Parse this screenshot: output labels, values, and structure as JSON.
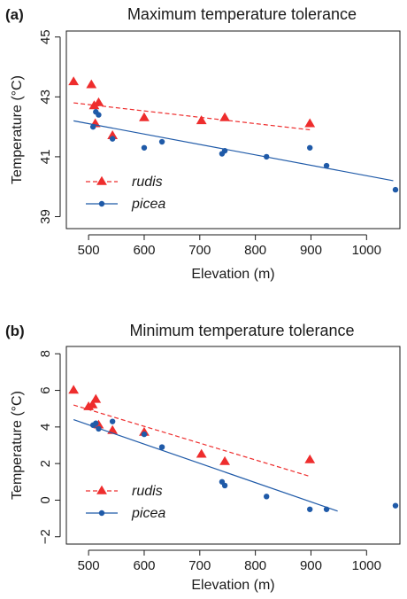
{
  "colors": {
    "rudis": "#ee2d2d",
    "picea": "#1f5aa8",
    "axis": "#1a1a1a"
  },
  "chart_data": [
    {
      "type": "scatter",
      "panel_label": "(a)",
      "title": "Maximum temperature tolerance",
      "xlabel": "Elevation (m)",
      "ylabel": "Temperature (°C)",
      "xlim": [
        460,
        1060
      ],
      "ylim": [
        38.6,
        45.2
      ],
      "xticks": [
        500,
        600,
        700,
        800,
        900,
        1000
      ],
      "yticks": [
        39,
        41,
        43,
        45
      ],
      "legend_position": "bottom-left",
      "series": [
        {
          "name": "rudis",
          "marker": "triangle",
          "line_style": "dashed",
          "points": [
            [
              473,
              43.5
            ],
            [
              505,
              43.4
            ],
            [
              510,
              42.7
            ],
            [
              512,
              42.1
            ],
            [
              518,
              42.8
            ],
            [
              543,
              41.7
            ],
            [
              600,
              42.3
            ],
            [
              703,
              42.2
            ],
            [
              745,
              42.3
            ],
            [
              898,
              42.1
            ]
          ],
          "fit": [
            [
              473,
              42.8
            ],
            [
              898,
              41.9
            ]
          ]
        },
        {
          "name": "picea",
          "marker": "circle",
          "line_style": "solid",
          "points": [
            [
              508,
              42.0
            ],
            [
              513,
              42.5
            ],
            [
              518,
              42.4
            ],
            [
              543,
              41.6
            ],
            [
              600,
              41.3
            ],
            [
              632,
              41.5
            ],
            [
              740,
              41.1
            ],
            [
              745,
              41.2
            ],
            [
              820,
              41.0
            ],
            [
              898,
              41.3
            ],
            [
              928,
              40.7
            ],
            [
              1052,
              39.9
            ]
          ],
          "fit": [
            [
              473,
              42.2
            ],
            [
              1048,
              40.2
            ]
          ]
        }
      ]
    },
    {
      "type": "scatter",
      "panel_label": "(b)",
      "title": "Minimum temperature tolerance",
      "xlabel": "Elevation (m)",
      "ylabel": "Temperature (°C)",
      "xlim": [
        460,
        1060
      ],
      "ylim": [
        -2.4,
        8.4
      ],
      "xticks": [
        500,
        600,
        700,
        800,
        900,
        1000
      ],
      "yticks": [
        -2,
        0,
        2,
        4,
        6,
        8
      ],
      "ytick_labels": [
        "−2",
        "0",
        "2",
        "4",
        "6",
        "8"
      ],
      "legend_position": "bottom-left",
      "series": [
        {
          "name": "rudis",
          "marker": "triangle",
          "line_style": "dashed",
          "points": [
            [
              473,
              6.0
            ],
            [
              500,
              5.1
            ],
            [
              507,
              5.2
            ],
            [
              513,
              5.5
            ],
            [
              518,
              4.1
            ],
            [
              543,
              3.8
            ],
            [
              600,
              3.7
            ],
            [
              703,
              2.5
            ],
            [
              745,
              2.1
            ],
            [
              898,
              2.2
            ]
          ],
          "fit": [
            [
              473,
              5.2
            ],
            [
              898,
              1.3
            ]
          ]
        },
        {
          "name": "picea",
          "marker": "circle",
          "line_style": "solid",
          "points": [
            [
              508,
              4.1
            ],
            [
              513,
              4.2
            ],
            [
              518,
              3.9
            ],
            [
              543,
              4.3
            ],
            [
              600,
              3.6
            ],
            [
              632,
              2.9
            ],
            [
              740,
              1.0
            ],
            [
              745,
              0.8
            ],
            [
              820,
              0.2
            ],
            [
              898,
              -0.5
            ],
            [
              928,
              -0.5
            ],
            [
              1052,
              -0.3
            ]
          ],
          "fit": [
            [
              473,
              4.4
            ],
            [
              948,
              -0.6
            ]
          ]
        }
      ]
    }
  ]
}
